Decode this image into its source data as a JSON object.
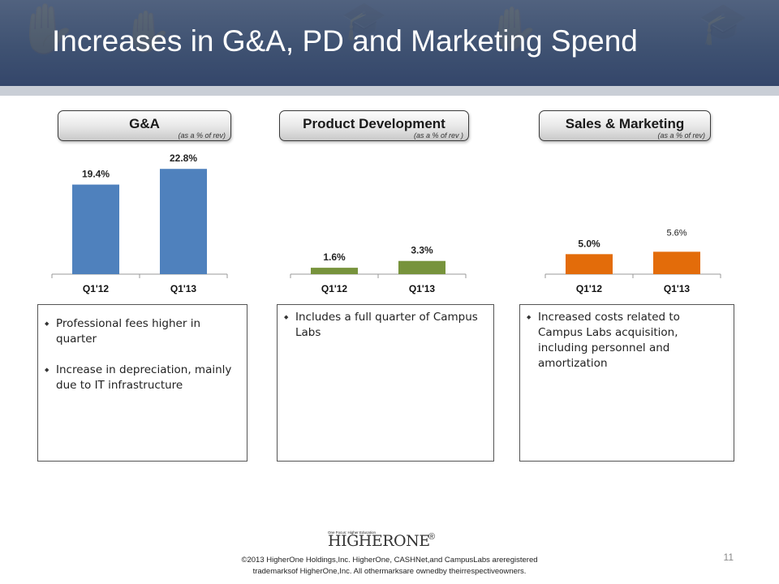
{
  "title": "Increases in G&A, PD and Marketing Spend",
  "panels": [
    {
      "header": "G&A",
      "subheader": "(as a % of rev)",
      "bullets": [
        "Professional fees higher in quarter",
        "Increase in depreciation, mainly due to IT infrastructure"
      ]
    },
    {
      "header": "Product Development",
      "subheader": "(as a % of rev )",
      "bullets": [
        "Includes a full quarter of Campus Labs"
      ]
    },
    {
      "header": "Sales & Marketing",
      "subheader": "(as a % of rev)",
      "bullets": [
        "Increased costs related to Campus Labs acquisition, including personnel and amortization"
      ]
    }
  ],
  "chart_data": [
    {
      "type": "bar",
      "categories": [
        "Q1'12",
        "Q1'13"
      ],
      "values": [
        19.4,
        22.8
      ],
      "value_labels": [
        "19.4%",
        "22.8%"
      ],
      "color": "#4f81bd",
      "ylim": [
        0,
        26
      ]
    },
    {
      "type": "bar",
      "categories": [
        "Q1'12",
        "Q1'13"
      ],
      "values": [
        1.6,
        3.3
      ],
      "value_labels": [
        "1.6%",
        "3.3%"
      ],
      "color": "#77933c",
      "ylim": [
        0,
        30
      ]
    },
    {
      "type": "bar",
      "categories": [
        "Q1'12",
        "Q1'13"
      ],
      "values": [
        5.0,
        5.6
      ],
      "value_labels": [
        "5.0%",
        "5.6%"
      ],
      "color": "#e36c0a",
      "ylim": [
        0,
        30
      ]
    }
  ],
  "footer": {
    "logo_tagline": "One Focus: Higher Education",
    "logo_text": "HIGHERONE",
    "logo_reg": "®",
    "page_number": "11",
    "copyright_line1": "©2013 HigherOne Holdings,Inc. HigherOne, CASHNet,and CampusLabs areregistered",
    "copyright_line2": "trademarksof HigherOne,Inc. All othermarksare ownedby theirrespectiveowners."
  },
  "colors": {
    "banner": "#3f5272",
    "ga": "#4f81bd",
    "pd": "#77933c",
    "sm": "#e36c0a"
  }
}
